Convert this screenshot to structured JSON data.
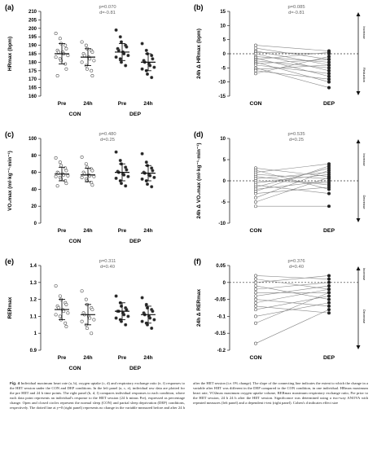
{
  "figure": {
    "panels": [
      {
        "letter": "(a)",
        "type": "strip",
        "ylabel": "HRmax (bpm)",
        "yticks": [
          160,
          165,
          170,
          175,
          180,
          185,
          190,
          195,
          200,
          205,
          210
        ],
        "ylim": [
          160,
          210
        ],
        "stats": [
          "p=0.070",
          "d=-0.81"
        ],
        "groups": [
          {
            "label": "Pre",
            "condition": "CON",
            "marker": "open",
            "mean": 185,
            "sd": 6,
            "points": [
              197,
              194,
              191,
              190,
              188,
              187,
              186,
              186,
              185,
              184,
              183,
              182,
              181,
              179,
              176,
              172
            ]
          },
          {
            "label": "24h",
            "condition": "CON",
            "marker": "open",
            "mean": 183,
            "sd": 5,
            "points": [
              192,
              190,
              188,
              187,
              186,
              185,
              184,
              183,
              182,
              181,
              180,
              178,
              176,
              175,
              172
            ]
          },
          {
            "label": "Pre",
            "condition": "DEP",
            "marker": "closed",
            "mean": 186,
            "sd": 5,
            "points": [
              199,
              195,
              192,
              190,
              189,
              188,
              187,
              186,
              185,
              184,
              183,
              182,
              180,
              178
            ]
          },
          {
            "label": "24h",
            "condition": "DEP",
            "marker": "closed",
            "mean": 180,
            "sd": 5,
            "points": [
              191,
              187,
              185,
              184,
              182,
              181,
              180,
              179,
              178,
              177,
              176,
              175,
              173,
              171
            ]
          }
        ],
        "conditions": [
          "CON",
          "DEP"
        ]
      },
      {
        "letter": "(b)",
        "type": "paired",
        "ylabel": "24h Δ HRmax (bpm)",
        "yticks": [
          -15,
          -10,
          -5,
          0,
          5,
          10,
          15
        ],
        "ylim": [
          -15,
          15
        ],
        "stats": [
          "p=0.085",
          "d=-0.81"
        ],
        "xlabels": [
          "CON",
          "DEP"
        ],
        "arrow_labels": [
          "Increase",
          "Reduction"
        ],
        "pairs": [
          [
            3,
            1
          ],
          [
            2,
            -2
          ],
          [
            1,
            -4
          ],
          [
            0.5,
            0
          ],
          [
            0,
            -6
          ],
          [
            -1,
            -3
          ],
          [
            -1.5,
            -8
          ],
          [
            -2,
            0.5
          ],
          [
            -2.5,
            -5
          ],
          [
            -3,
            -10
          ],
          [
            -3.5,
            -2
          ],
          [
            -4,
            -7
          ],
          [
            -5,
            -12
          ],
          [
            -5.5,
            -4
          ],
          [
            -6,
            -9
          ],
          [
            -7,
            -1
          ]
        ]
      },
      {
        "letter": "(c)",
        "type": "strip",
        "ylabel": "VO₂max (ml·kg⁻¹·min⁻¹)",
        "yticks": [
          0,
          20,
          40,
          60,
          80,
          100
        ],
        "ylim": [
          0,
          100
        ],
        "stats": [
          "p=0.480",
          "d=0.25"
        ],
        "groups": [
          {
            "label": "Pre",
            "condition": "CON",
            "marker": "open",
            "mean": 58,
            "sd": 8,
            "points": [
              77,
              72,
              68,
              65,
              62,
              60,
              59,
              58,
              57,
              56,
              55,
              54,
              52,
              50,
              47,
              44
            ]
          },
          {
            "label": "24h",
            "condition": "CON",
            "marker": "open",
            "mean": 57,
            "sd": 8,
            "points": [
              78,
              70,
              66,
              64,
              62,
              60,
              58,
              57,
              56,
              55,
              54,
              52,
              50,
              48,
              45
            ]
          },
          {
            "label": "Pre",
            "condition": "DEP",
            "marker": "closed",
            "mean": 60,
            "sd": 10,
            "points": [
              84,
              74,
              70,
              66,
              63,
              61,
              60,
              58,
              57,
              55,
              53,
              50,
              47,
              44
            ]
          },
          {
            "label": "24h",
            "condition": "DEP",
            "marker": "closed",
            "mean": 59,
            "sd": 9,
            "points": [
              82,
              72,
              68,
              65,
              62,
              60,
              59,
              57,
              56,
              54,
              52,
              50,
              46,
              43
            ]
          }
        ],
        "conditions": [
          "CON",
          "DEP"
        ]
      },
      {
        "letter": "(d)",
        "type": "paired",
        "ylabel": "24h Δ VO₂max (ml·kg⁻¹·min⁻¹)",
        "yticks": [
          -10,
          -5,
          0,
          5,
          10
        ],
        "ylim": [
          -10,
          10
        ],
        "stats": [
          "p=0.535",
          "d=0.25"
        ],
        "xlabels": [
          "CON",
          "DEP"
        ],
        "arrow_labels": [
          "Increase",
          "Decrease"
        ],
        "pairs": [
          [
            3,
            1
          ],
          [
            2.5,
            -2
          ],
          [
            2,
            4
          ],
          [
            1.5,
            0.5
          ],
          [
            1,
            -1
          ],
          [
            0.5,
            2
          ],
          [
            0,
            -0.5
          ],
          [
            -0.5,
            1.5
          ],
          [
            -1,
            -3
          ],
          [
            -1.5,
            3
          ],
          [
            -2,
            0
          ],
          [
            -3,
            -1.5
          ],
          [
            -4,
            2.5
          ],
          [
            -5,
            0.8
          ],
          [
            -6,
            -6
          ],
          [
            -2.5,
            3.5
          ]
        ]
      },
      {
        "letter": "(e)",
        "type": "strip",
        "ylabel": "RERmax",
        "yticks": [
          0.9,
          1.0,
          1.1,
          1.2,
          1.3,
          1.4
        ],
        "ylim": [
          0.9,
          1.4
        ],
        "stats": [
          "p=0.311",
          "d=0.40"
        ],
        "groups": [
          {
            "label": "Pre",
            "condition": "CON",
            "marker": "open",
            "mean": 1.14,
            "sd": 0.06,
            "points": [
              1.28,
              1.22,
              1.2,
              1.18,
              1.17,
              1.16,
              1.15,
              1.14,
              1.13,
              1.12,
              1.11,
              1.1,
              1.08,
              1.06,
              1.04
            ]
          },
          {
            "label": "24h",
            "condition": "CON",
            "marker": "open",
            "mean": 1.11,
            "sd": 0.06,
            "points": [
              1.25,
              1.2,
              1.17,
              1.15,
              1.14,
              1.12,
              1.11,
              1.1,
              1.09,
              1.08,
              1.07,
              1.05,
              1.03,
              1.0
            ]
          },
          {
            "label": "Pre",
            "condition": "DEP",
            "marker": "closed",
            "mean": 1.13,
            "sd": 0.05,
            "points": [
              1.22,
              1.18,
              1.16,
              1.15,
              1.14,
              1.13,
              1.13,
              1.12,
              1.11,
              1.1,
              1.09,
              1.08,
              1.07,
              1.05
            ]
          },
          {
            "label": "24h",
            "condition": "DEP",
            "marker": "closed",
            "mean": 1.11,
            "sd": 0.05,
            "points": [
              1.21,
              1.17,
              1.15,
              1.14,
              1.13,
              1.12,
              1.11,
              1.1,
              1.09,
              1.08,
              1.07,
              1.06,
              1.05,
              1.03
            ]
          }
        ],
        "conditions": [
          "CON",
          "DEP"
        ]
      },
      {
        "letter": "(f)",
        "type": "paired",
        "ylabel": "24h Δ RERmax",
        "yticks": [
          -0.2,
          -0.15,
          -0.1,
          -0.05,
          0.0,
          0.05
        ],
        "ylim": [
          -0.2,
          0.05
        ],
        "stats": [
          "p=0.376",
          "d=0.40"
        ],
        "xlabels": [
          "CON",
          "DEP"
        ],
        "arrow_labels": [
          "Increase",
          "Decrease"
        ],
        "pairs": [
          [
            0.02,
            0.01
          ],
          [
            0.01,
            -0.02
          ],
          [
            0.0,
            0.02
          ],
          [
            -0.01,
            -0.05
          ],
          [
            -0.02,
            0.0
          ],
          [
            -0.03,
            -0.03
          ],
          [
            -0.04,
            -0.01
          ],
          [
            -0.05,
            -0.07
          ],
          [
            -0.06,
            -0.02
          ],
          [
            -0.07,
            -0.09
          ],
          [
            -0.08,
            -0.04
          ],
          [
            -0.1,
            -0.06
          ],
          [
            -0.12,
            -0.03
          ],
          [
            -0.18,
            -0.08
          ]
        ]
      }
    ]
  },
  "caption": {
    "label": "Fig. 4",
    "text": "Individual maximum heart rate (a, b), oxygen uptake (c, d) and respiratory exchange ratio (e, f) responses to the HIIT session under the CON and DEP conditions. In the left panel (a, c, e), individual raw data are plotted for the pre HIIT and 24 h time points. The right panel (b, d, f) compares individual responses to each condition, where each data point represents an individual's response to the HIIT session (24 h minus Pre), expressed as percentage change. Open and closed circles represent the normal sleep (CON) and partial sleep deprivation (DEP) conditions, respectively. The dotted line at y=0 (right panel) represents no change in the variable measured before and after 24 h after the HIIT session (i.e. 0% change). The slope of the connecting line indicates the extent to which the change in a variable after HIIT was different in the DEP compared to the CON condition, in one individual. HRmax maximum heart rate, VO2max maximum oxygen uptake volume, RERmax maximum respiratory exchange ratio, Pre prior to the HIIT session, 24 h 24 h after the HIIT session. Significance was determined using a two-way ANOVA with repeated measures (left panel) and a dependent t-test (right panel). Cohen's d indicates effect size"
  }
}
